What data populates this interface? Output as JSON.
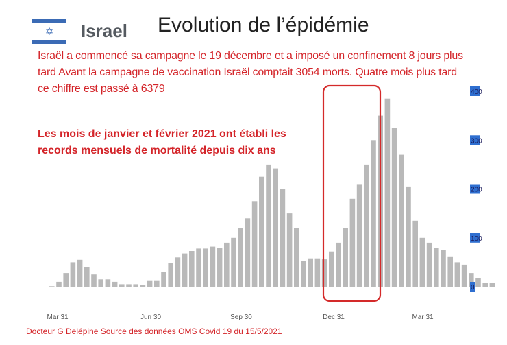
{
  "header": {
    "country": "Israel",
    "title": "Evolution de l’épidémie",
    "intro": "Israël a commencé sa campagne le 19 décembre et a imposé un confinement 8 jours plus tard Avant la campagne de vaccination Israël comptait 3054 morts. Quatre mois plus tard ce chiffre est passé à  6379",
    "highlight": "Les mois de janvier et février 2021 ont établi les records mensuels de mortalité depuis dix ans"
  },
  "footer": {
    "credit": "Docteur G Delépine  Source des données OMS Covid 19 du 15/5/2021"
  },
  "colors": {
    "bar": "#b9b9b9",
    "text_red": "#d4252a",
    "highlight_box": "#d42a2a",
    "tick_bg": "#2f6fd0",
    "flag_blue": "#3b6bb5"
  },
  "icons": {
    "flag": "israel-flag-icon"
  },
  "chart_data": {
    "type": "bar",
    "x_tick_labels": [
      "Mar 31",
      "Jun 30",
      "Sep 30",
      "Dec 31",
      "Mar 31"
    ],
    "y_ticks": [
      0,
      100,
      200,
      300,
      400
    ],
    "ylim": [
      0,
      400
    ],
    "y_axis_position": "right",
    "grid": false,
    "legend": "none",
    "values": [
      1,
      10,
      28,
      50,
      55,
      40,
      25,
      15,
      15,
      10,
      5,
      5,
      5,
      3,
      13,
      13,
      30,
      48,
      60,
      68,
      73,
      78,
      78,
      82,
      80,
      90,
      100,
      120,
      140,
      175,
      225,
      250,
      242,
      200,
      150,
      120,
      52,
      58,
      58,
      56,
      72,
      90,
      120,
      180,
      210,
      250,
      300,
      350,
      385,
      325,
      270,
      205,
      135,
      100,
      90,
      80,
      75,
      62,
      50,
      45,
      28,
      18,
      8,
      8
    ],
    "highlight_box_categories": [
      40,
      47
    ]
  }
}
